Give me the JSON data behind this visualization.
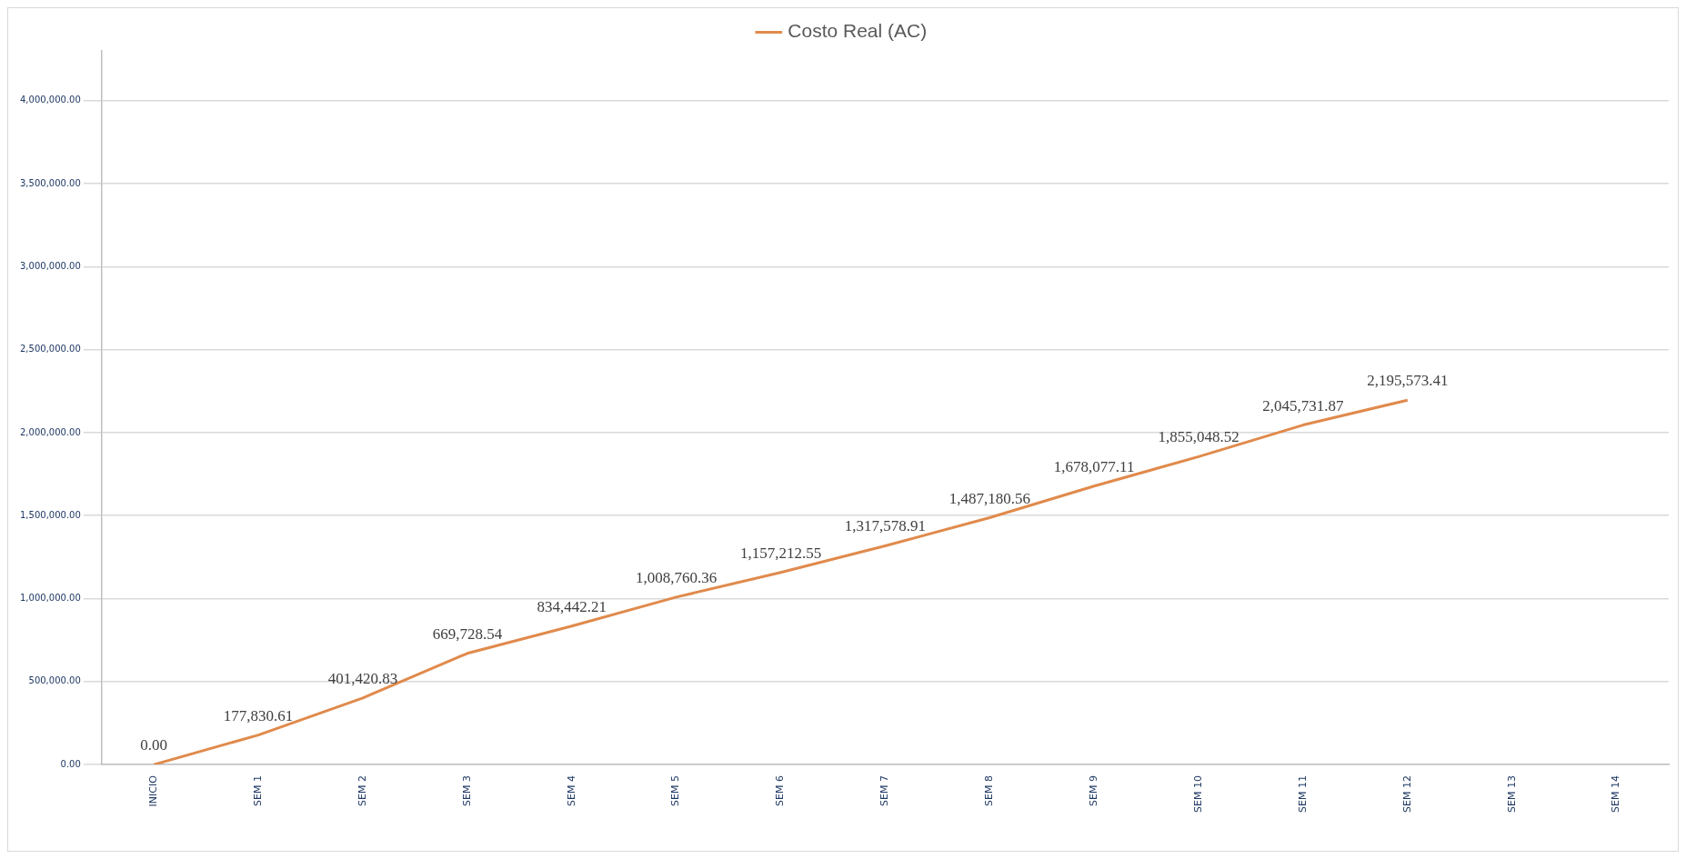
{
  "chart_data": {
    "type": "line",
    "categories": [
      "INICIO",
      "SEM 1",
      "SEM 2",
      "SEM 3",
      "SEM 4",
      "SEM 5",
      "SEM 6",
      "SEM 7",
      "SEM 8",
      "SEM 9",
      "SEM 10",
      "SEM 11",
      "SEM 12",
      "SEM 13",
      "SEM 14"
    ],
    "series": [
      {
        "name": "Costo Real (AC)",
        "color": "#e08a4c",
        "values": [
          0,
          177830.61,
          401420.83,
          669728.54,
          834442.21,
          1008760.36,
          1157212.55,
          1317578.91,
          1487180.56,
          1678077.11,
          1855048.52,
          2045731.87,
          2195573.41,
          null,
          null
        ],
        "value_labels": [
          "0.00",
          "177,830.61",
          "401,420.83",
          "669,728.54",
          "834,442.21",
          "1,008,760.36",
          "1,157,212.55",
          "1,317,578.91",
          "1,487,180.56",
          "1,678,077.11",
          "1,855,048.52",
          "2,045,731.87",
          "2,195,573.41",
          null,
          null
        ]
      }
    ],
    "ylim": [
      0,
      4300000
    ],
    "yticks": [
      {
        "value": 0,
        "label": "0.00"
      },
      {
        "value": 500000,
        "label": "500,000.00"
      },
      {
        "value": 1000000,
        "label": "1,000,000.00"
      },
      {
        "value": 1500000,
        "label": "1,500,000.00"
      },
      {
        "value": 2000000,
        "label": "2,000,000.00"
      },
      {
        "value": 2500000,
        "label": "2,500,000.00"
      },
      {
        "value": 3000000,
        "label": "3,000,000.00"
      },
      {
        "value": 3500000,
        "label": "3,500,000.00"
      },
      {
        "value": 4000000,
        "label": "4,000,000.00"
      }
    ],
    "grid": "y",
    "legend": "top",
    "marker": "none",
    "line_style": "solid"
  }
}
